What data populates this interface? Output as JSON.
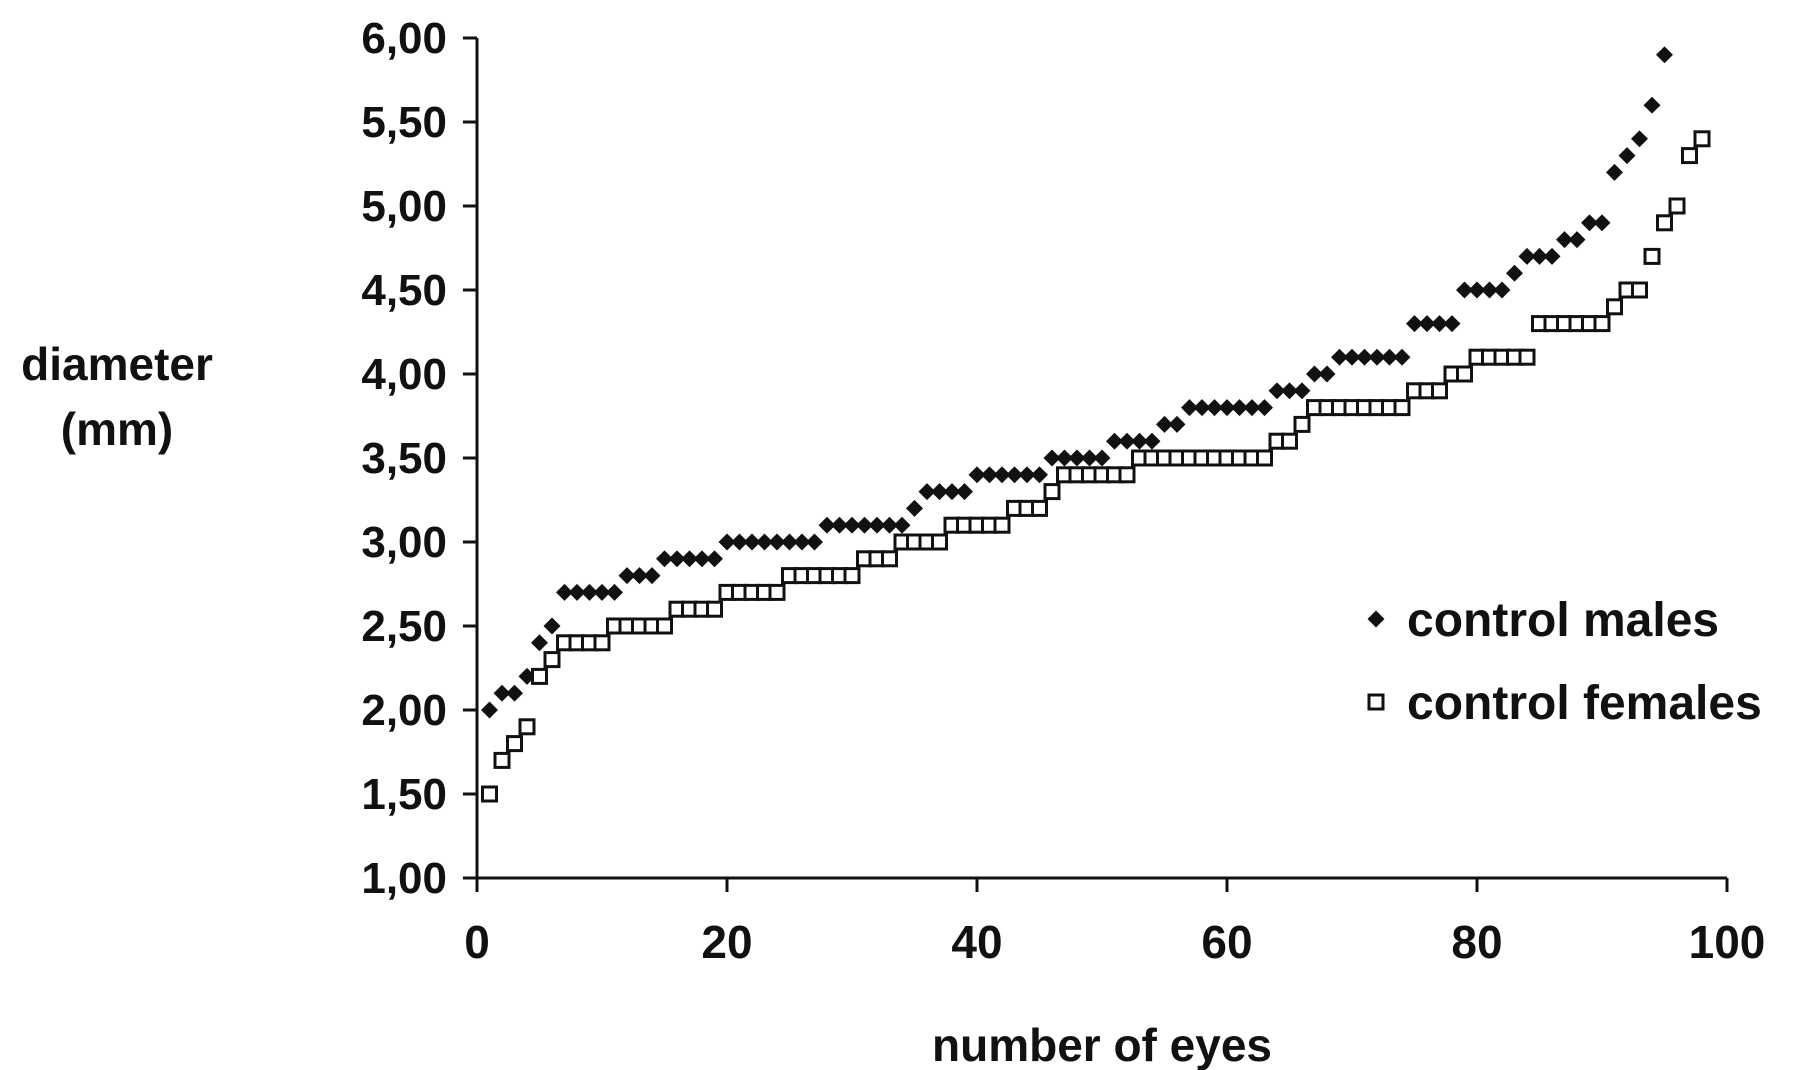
{
  "chart_data": {
    "type": "scatter",
    "title": "",
    "xlabel": "number of eyes",
    "ylabel_lines": [
      "diameter",
      "(mm)"
    ],
    "xlim": [
      0,
      100
    ],
    "ylim": [
      1.0,
      6.0
    ],
    "x_ticks": [
      "0",
      "20",
      "40",
      "60",
      "80",
      "100"
    ],
    "y_ticks": [
      "1,00",
      "1,50",
      "2,00",
      "2,50",
      "3,00",
      "3,50",
      "4,00",
      "4,50",
      "5,00",
      "5,50",
      "6,00"
    ],
    "grid": false,
    "legend_position": "right",
    "series": [
      {
        "name": "control males",
        "marker": "diamond",
        "color": "#000000",
        "x": [
          1,
          2,
          3,
          4,
          5,
          6,
          7,
          8,
          9,
          10,
          11,
          12,
          13,
          14,
          15,
          16,
          17,
          18,
          19,
          20,
          21,
          22,
          23,
          24,
          25,
          26,
          27,
          28,
          29,
          30,
          31,
          32,
          33,
          34,
          35,
          36,
          37,
          38,
          39,
          40,
          41,
          42,
          43,
          44,
          45,
          46,
          47,
          48,
          49,
          50,
          51,
          52,
          53,
          54,
          55,
          56,
          57,
          58,
          59,
          60,
          61,
          62,
          63,
          64,
          65,
          66,
          67,
          68,
          69,
          70,
          71,
          72,
          73,
          74,
          75,
          76,
          77,
          78,
          79,
          80,
          81,
          82,
          83,
          84,
          85,
          86,
          87,
          88,
          89,
          90,
          91,
          92,
          93,
          94,
          95
        ],
        "y": [
          2.0,
          2.1,
          2.1,
          2.2,
          2.4,
          2.5,
          2.7,
          2.7,
          2.7,
          2.7,
          2.7,
          2.8,
          2.8,
          2.8,
          2.9,
          2.9,
          2.9,
          2.9,
          2.9,
          3.0,
          3.0,
          3.0,
          3.0,
          3.0,
          3.0,
          3.0,
          3.0,
          3.1,
          3.1,
          3.1,
          3.1,
          3.1,
          3.1,
          3.1,
          3.2,
          3.3,
          3.3,
          3.3,
          3.3,
          3.4,
          3.4,
          3.4,
          3.4,
          3.4,
          3.4,
          3.5,
          3.5,
          3.5,
          3.5,
          3.5,
          3.6,
          3.6,
          3.6,
          3.6,
          3.7,
          3.7,
          3.8,
          3.8,
          3.8,
          3.8,
          3.8,
          3.8,
          3.8,
          3.9,
          3.9,
          3.9,
          4.0,
          4.0,
          4.1,
          4.1,
          4.1,
          4.1,
          4.1,
          4.1,
          4.3,
          4.3,
          4.3,
          4.3,
          4.5,
          4.5,
          4.5,
          4.5,
          4.6,
          4.7,
          4.7,
          4.7,
          4.8,
          4.8,
          4.9,
          4.9,
          5.2,
          5.3,
          5.4,
          5.6,
          5.9
        ]
      },
      {
        "name": "control females",
        "marker": "square",
        "color": "#000000",
        "x": [
          1,
          2,
          3,
          4,
          5,
          6,
          7,
          8,
          9,
          10,
          11,
          12,
          13,
          14,
          15,
          16,
          17,
          18,
          19,
          20,
          21,
          22,
          23,
          24,
          25,
          26,
          27,
          28,
          29,
          30,
          31,
          32,
          33,
          34,
          35,
          36,
          37,
          38,
          39,
          40,
          41,
          42,
          43,
          44,
          45,
          46,
          47,
          48,
          49,
          50,
          51,
          52,
          53,
          54,
          55,
          56,
          57,
          58,
          59,
          60,
          61,
          62,
          63,
          64,
          65,
          66,
          67,
          68,
          69,
          70,
          71,
          72,
          73,
          74,
          75,
          76,
          77,
          78,
          79,
          80,
          81,
          82,
          83,
          84,
          85,
          86,
          87,
          88,
          89,
          90,
          91,
          92,
          93,
          94,
          95,
          96,
          97,
          98
        ],
        "y": [
          1.5,
          1.7,
          1.8,
          1.9,
          2.2,
          2.3,
          2.4,
          2.4,
          2.4,
          2.4,
          2.5,
          2.5,
          2.5,
          2.5,
          2.5,
          2.6,
          2.6,
          2.6,
          2.6,
          2.7,
          2.7,
          2.7,
          2.7,
          2.7,
          2.8,
          2.8,
          2.8,
          2.8,
          2.8,
          2.8,
          2.9,
          2.9,
          2.9,
          3.0,
          3.0,
          3.0,
          3.0,
          3.1,
          3.1,
          3.1,
          3.1,
          3.1,
          3.2,
          3.2,
          3.2,
          3.3,
          3.4,
          3.4,
          3.4,
          3.4,
          3.4,
          3.4,
          3.5,
          3.5,
          3.5,
          3.5,
          3.5,
          3.5,
          3.5,
          3.5,
          3.5,
          3.5,
          3.5,
          3.6,
          3.6,
          3.7,
          3.8,
          3.8,
          3.8,
          3.8,
          3.8,
          3.8,
          3.8,
          3.8,
          3.9,
          3.9,
          3.9,
          4.0,
          4.0,
          4.1,
          4.1,
          4.1,
          4.1,
          4.1,
          4.3,
          4.3,
          4.3,
          4.3,
          4.3,
          4.3,
          4.4,
          4.5,
          4.5,
          4.7,
          4.9,
          5.0,
          5.3,
          5.4
        ]
      }
    ]
  }
}
